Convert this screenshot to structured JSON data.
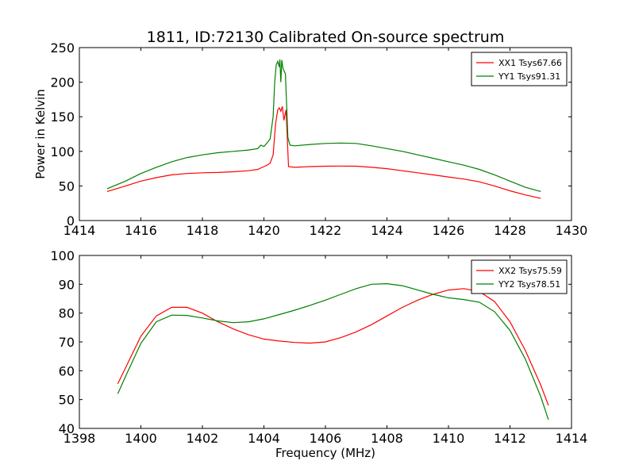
{
  "chart_data": [
    {
      "type": "line",
      "title": "1811, ID:72130 Calibrated On-source spectrum",
      "xlabel": "",
      "ylabel": "Power in Kelvin",
      "xlim": [
        1414,
        1430
      ],
      "ylim": [
        0,
        250
      ],
      "xticks": [
        1414,
        1416,
        1418,
        1420,
        1422,
        1424,
        1426,
        1428,
        1430
      ],
      "yticks": [
        0,
        50,
        100,
        150,
        200,
        250
      ],
      "grid": false,
      "legend_position": "top-right",
      "series": [
        {
          "name": "XX1 Tsys67.66",
          "color": "#ff0000",
          "points": [
            [
              1414.9,
              42
            ],
            [
              1415.5,
              50
            ],
            [
              1416.0,
              57
            ],
            [
              1416.5,
              62
            ],
            [
              1417.0,
              66
            ],
            [
              1417.5,
              68
            ],
            [
              1418.0,
              69
            ],
            [
              1418.5,
              69.5
            ],
            [
              1419.0,
              70.5
            ],
            [
              1419.5,
              72
            ],
            [
              1419.8,
              74
            ],
            [
              1420.0,
              78
            ],
            [
              1420.1,
              80
            ],
            [
              1420.2,
              83
            ],
            [
              1420.3,
              95
            ],
            [
              1420.38,
              140
            ],
            [
              1420.45,
              160
            ],
            [
              1420.5,
              163
            ],
            [
              1420.55,
              158
            ],
            [
              1420.6,
              165
            ],
            [
              1420.65,
              145
            ],
            [
              1420.72,
              160
            ],
            [
              1420.8,
              78
            ],
            [
              1421.0,
              77
            ],
            [
              1421.5,
              78
            ],
            [
              1422.0,
              78.5
            ],
            [
              1422.5,
              78.8
            ],
            [
              1423.0,
              78.5
            ],
            [
              1423.5,
              77
            ],
            [
              1424.0,
              75
            ],
            [
              1424.5,
              72
            ],
            [
              1425.0,
              69
            ],
            [
              1425.5,
              66
            ],
            [
              1426.0,
              63
            ],
            [
              1426.5,
              60
            ],
            [
              1427.0,
              56
            ],
            [
              1427.5,
              50
            ],
            [
              1428.0,
              43
            ],
            [
              1428.5,
              37
            ],
            [
              1429.0,
              32
            ]
          ]
        },
        {
          "name": "YY1 Tsys91.31",
          "color": "#008000",
          "points": [
            [
              1414.9,
              46
            ],
            [
              1415.5,
              57
            ],
            [
              1416.0,
              68
            ],
            [
              1416.5,
              77
            ],
            [
              1417.0,
              85
            ],
            [
              1417.5,
              91
            ],
            [
              1418.0,
              95
            ],
            [
              1418.5,
              98
            ],
            [
              1419.0,
              100
            ],
            [
              1419.5,
              102
            ],
            [
              1419.8,
              104
            ],
            [
              1419.9,
              109
            ],
            [
              1420.0,
              107
            ],
            [
              1420.1,
              112
            ],
            [
              1420.2,
              118
            ],
            [
              1420.3,
              150
            ],
            [
              1420.35,
              200
            ],
            [
              1420.4,
              225
            ],
            [
              1420.45,
              230
            ],
            [
              1420.5,
              222
            ],
            [
              1420.52,
              233
            ],
            [
              1420.55,
              200
            ],
            [
              1420.58,
              232
            ],
            [
              1420.62,
              220
            ],
            [
              1420.7,
              212
            ],
            [
              1420.78,
              120
            ],
            [
              1420.85,
              109
            ],
            [
              1421.0,
              108
            ],
            [
              1421.5,
              110
            ],
            [
              1422.0,
              111.5
            ],
            [
              1422.5,
              112
            ],
            [
              1423.0,
              111.5
            ],
            [
              1423.5,
              108
            ],
            [
              1424.0,
              104
            ],
            [
              1424.5,
              100
            ],
            [
              1425.0,
              95
            ],
            [
              1425.5,
              90
            ],
            [
              1426.0,
              85
            ],
            [
              1426.5,
              80
            ],
            [
              1427.0,
              74
            ],
            [
              1427.5,
              66
            ],
            [
              1428.0,
              57
            ],
            [
              1428.5,
              48
            ],
            [
              1429.0,
              42
            ]
          ]
        }
      ]
    },
    {
      "type": "line",
      "title": "",
      "xlabel": "Frequency (MHz)",
      "ylabel": "",
      "xlim": [
        1398,
        1414
      ],
      "ylim": [
        40,
        100
      ],
      "xticks": [
        1398,
        1400,
        1402,
        1404,
        1406,
        1408,
        1410,
        1412,
        1414
      ],
      "yticks": [
        40,
        50,
        60,
        70,
        80,
        90,
        100
      ],
      "grid": false,
      "legend_position": "top-right",
      "series": [
        {
          "name": "XX2 Tsys75.59",
          "color": "#ff0000",
          "points": [
            [
              1399.25,
              55.5
            ],
            [
              1399.5,
              61
            ],
            [
              1400.0,
              72
            ],
            [
              1400.5,
              79
            ],
            [
              1401.0,
              82
            ],
            [
              1401.5,
              82
            ],
            [
              1402.0,
              80
            ],
            [
              1402.5,
              77
            ],
            [
              1403.0,
              74.5
            ],
            [
              1403.5,
              72.5
            ],
            [
              1404.0,
              71
            ],
            [
              1404.5,
              70.3
            ],
            [
              1405.0,
              69.8
            ],
            [
              1405.5,
              69.6
            ],
            [
              1406.0,
              70
            ],
            [
              1406.5,
              71.5
            ],
            [
              1407.0,
              73.5
            ],
            [
              1407.5,
              76
            ],
            [
              1408.0,
              79
            ],
            [
              1408.5,
              82
            ],
            [
              1409.0,
              84.5
            ],
            [
              1409.5,
              86.5
            ],
            [
              1410.0,
              88
            ],
            [
              1410.5,
              88.5
            ],
            [
              1411.0,
              87.5
            ],
            [
              1411.5,
              84
            ],
            [
              1412.0,
              77
            ],
            [
              1412.5,
              67
            ],
            [
              1413.0,
              55
            ],
            [
              1413.25,
              48
            ]
          ]
        },
        {
          "name": "YY2 Tsys78.51",
          "color": "#008000",
          "points": [
            [
              1399.25,
              52
            ],
            [
              1399.5,
              58
            ],
            [
              1400.0,
              69.5
            ],
            [
              1400.5,
              77
            ],
            [
              1401.0,
              79.3
            ],
            [
              1401.5,
              79.2
            ],
            [
              1402.0,
              78.3
            ],
            [
              1402.5,
              77.3
            ],
            [
              1403.0,
              76.7
            ],
            [
              1403.5,
              77
            ],
            [
              1404.0,
              78
            ],
            [
              1404.5,
              79.5
            ],
            [
              1405.0,
              81
            ],
            [
              1405.5,
              82.7
            ],
            [
              1406.0,
              84.5
            ],
            [
              1406.5,
              86.5
            ],
            [
              1407.0,
              88.5
            ],
            [
              1407.5,
              90
            ],
            [
              1408.0,
              90.2
            ],
            [
              1408.5,
              89.5
            ],
            [
              1409.0,
              88
            ],
            [
              1409.5,
              86.5
            ],
            [
              1410.0,
              85.3
            ],
            [
              1410.5,
              84.7
            ],
            [
              1411.0,
              83.8
            ],
            [
              1411.5,
              80.5
            ],
            [
              1412.0,
              74
            ],
            [
              1412.5,
              64
            ],
            [
              1413.0,
              51
            ],
            [
              1413.25,
              43
            ]
          ]
        }
      ]
    }
  ]
}
